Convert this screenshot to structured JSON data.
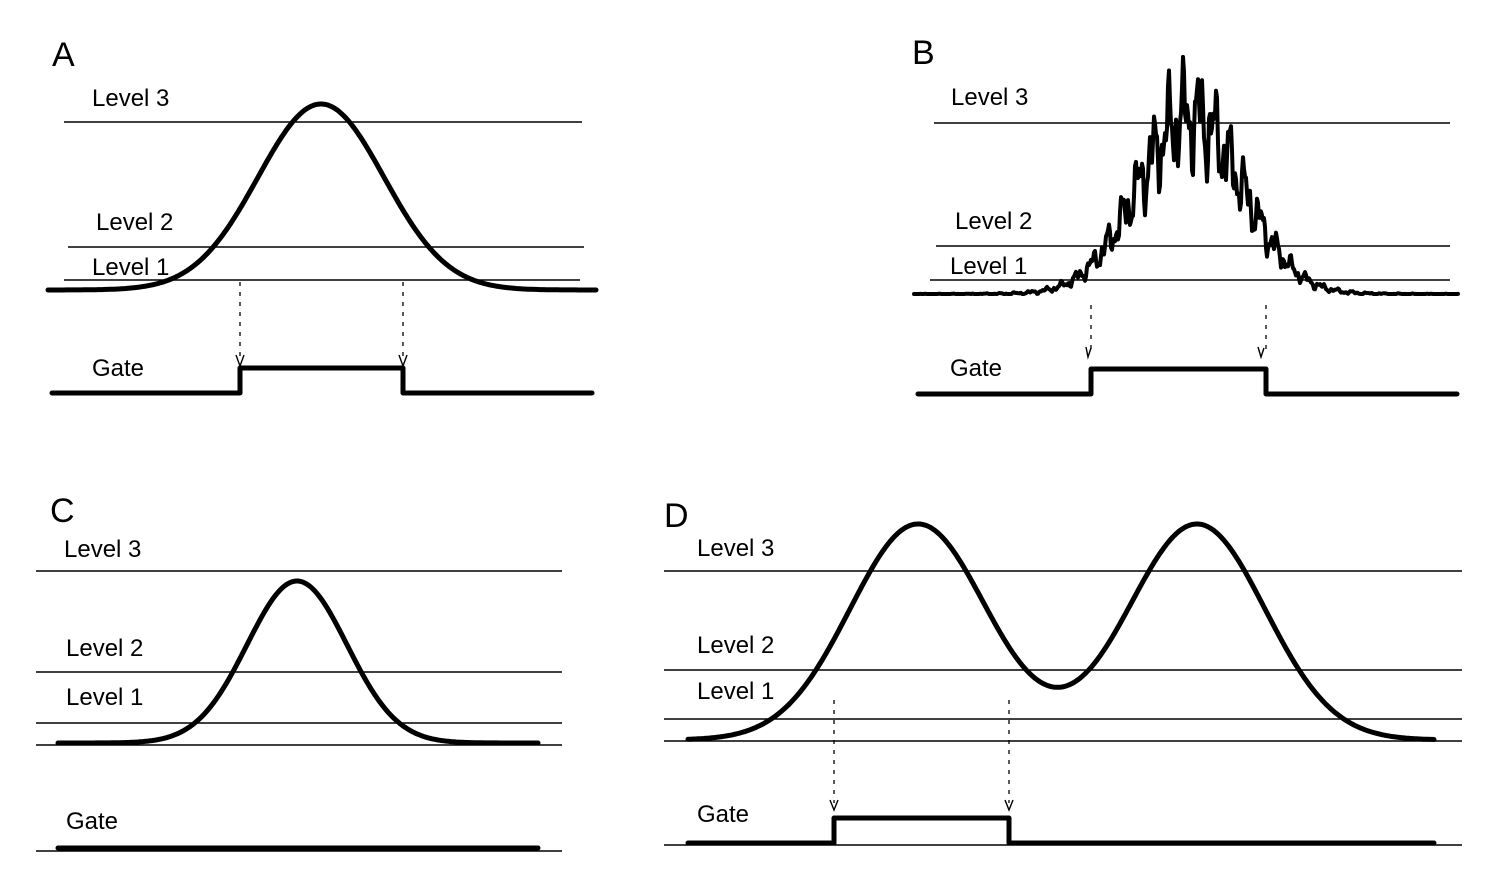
{
  "panels": {
    "A": {
      "letter": "A",
      "level_labels": {
        "level3": "Level 3",
        "level2": "Level 2",
        "level1": "Level 1"
      },
      "gate_label": "Gate",
      "signal": "single peak crossing Level 3",
      "gate": "open from Level 2 rise to Level 2 fall"
    },
    "B": {
      "letter": "B",
      "level_labels": {
        "level3": "Level 3",
        "level2": "Level 2",
        "level1": "Level 1"
      },
      "gate_label": "Gate",
      "signal": "noisy single peak crossing Level 3",
      "gate": "open from Level 2 rise to Level 2 fall"
    },
    "C": {
      "letter": "C",
      "level_labels": {
        "level3": "Level 3",
        "level2": "Level 2",
        "level1": "Level 1"
      },
      "gate_label": "Gate",
      "signal": "single peak not reaching Level 3",
      "gate": "stays closed"
    },
    "D": {
      "letter": "D",
      "level_labels": {
        "level3": "Level 3",
        "level2": "Level 2",
        "level1": "Level 1"
      },
      "gate_label": "Gate",
      "signal": "two peaks crossing Level 3, dip below Level 2 between them",
      "gate": "open from first Level 2 rise to first Level 2 fall"
    }
  },
  "colors": {
    "ink": "#000000",
    "background": "#ffffff"
  }
}
